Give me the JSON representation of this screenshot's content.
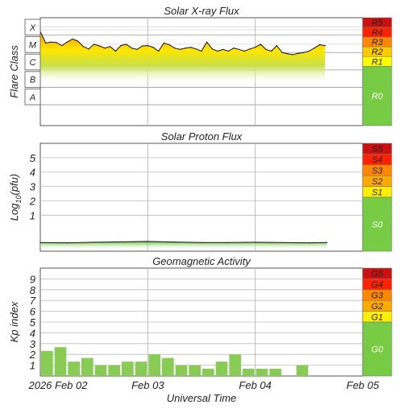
{
  "chart_data": [
    {
      "type": "area",
      "title": "Solar X-ray Flux",
      "ylabel": "Flare Class",
      "y_scale": "log",
      "y_categories": [
        "X",
        "M",
        "C",
        "B",
        "A"
      ],
      "x_ticks": [
        "2026 Feb 02",
        "Feb 03",
        "Feb 04",
        "Feb 05"
      ],
      "grid": true,
      "series": [
        {
          "x": [
            "Feb 02 00:00",
            "Feb 02 01:12",
            "Feb 02 02:24",
            "Feb 02 03:36",
            "Feb 02 04:48",
            "Feb 02 06:00",
            "Feb 02 07:12",
            "Feb 02 08:24",
            "Feb 02 09:36",
            "Feb 02 10:48",
            "Feb 02 12:00",
            "Feb 02 13:12",
            "Feb 02 14:24",
            "Feb 02 15:36",
            "Feb 02 16:48",
            "Feb 02 18:00",
            "Feb 02 19:12",
            "Feb 02 20:24",
            "Feb 02 21:36",
            "Feb 02 22:48",
            "Feb 03 00:00",
            "Feb 03 01:12",
            "Feb 03 02:24",
            "Feb 03 03:36",
            "Feb 03 04:48",
            "Feb 03 06:00",
            "Feb 03 07:12",
            "Feb 03 08:24",
            "Feb 03 09:36",
            "Feb 03 10:48",
            "Feb 03 12:00",
            "Feb 03 13:12",
            "Feb 03 14:24",
            "Feb 03 15:36",
            "Feb 03 16:48",
            "Feb 03 18:00",
            "Feb 03 19:12",
            "Feb 03 20:24",
            "Feb 03 21:36",
            "Feb 03 22:48",
            "Feb 04 00:00",
            "Feb 04 01:12",
            "Feb 04 02:24",
            "Feb 04 03:36",
            "Feb 04 04:48",
            "Feb 04 06:00",
            "Feb 04 07:12",
            "Feb 04 08:24",
            "Feb 04 09:36",
            "Feb 04 10:48",
            "Feb 04 12:00",
            "Feb 04 13:12",
            "Feb 04 14:24",
            "Feb 04 15:36"
          ],
          "values": [
            0.00016,
            3.5e-05,
            4e-05,
            3.8e-05,
            2.5e-05,
            4e-05,
            6e-05,
            4.5e-05,
            2.2e-05,
            1.6e-05,
            3e-05,
            2.4e-05,
            1.8e-05,
            2.2e-05,
            1.2e-05,
            2.5e-05,
            3e-05,
            1.8e-05,
            1.5e-05,
            2.4e-05,
            2.5e-05,
            2e-05,
            1.2e-05,
            3.5e-05,
            2.8e-05,
            1.8e-05,
            1.5e-05,
            1.8e-05,
            2e-05,
            1.6e-05,
            1.2e-05,
            4e-05,
            1.6e-05,
            1.2e-05,
            1.5e-05,
            1.2e-05,
            1.8e-05,
            1.5e-05,
            1.2e-05,
            1.6e-05,
            2e-05,
            3e-05,
            1.5e-05,
            1.2e-05,
            2.5e-05,
            1e-05,
            8.5e-06,
            7.5e-06,
            9e-06,
            1e-05,
            1.2e-05,
            1.8e-05,
            2.8e-05,
            2.5e-05
          ]
        }
      ],
      "scale_labels": [
        "R5",
        "R4",
        "R3",
        "R2",
        "R1",
        "R0"
      ],
      "scale_colors": [
        "#cc1111",
        "#ff2200",
        "#ff8800",
        "#ffcc00",
        "#ffff00",
        "#77cc44"
      ]
    },
    {
      "type": "area",
      "title": "Solar Proton Flux",
      "ylabel": "Log10(pfu)",
      "ylabel_parts": [
        "Log",
        "10",
        "(pfu)"
      ],
      "y_ticks": [
        "5",
        "4",
        "3",
        "2",
        "1"
      ],
      "ylim": [
        -1.5,
        6
      ],
      "x_ticks": [
        "2026 Feb 02",
        "Feb 03",
        "Feb 04",
        "Feb 05"
      ],
      "grid": true,
      "series": [
        {
          "x": [
            "Feb 02 00:00",
            "Feb 02 06:00",
            "Feb 02 12:00",
            "Feb 02 18:00",
            "Feb 03 00:00",
            "Feb 03 06:00",
            "Feb 03 12:00",
            "Feb 03 18:00",
            "Feb 04 00:00",
            "Feb 04 06:00",
            "Feb 04 12:00",
            "Feb 04 16:00"
          ],
          "values": [
            -0.9,
            -0.92,
            -0.88,
            -0.85,
            -0.82,
            -0.86,
            -0.9,
            -0.9,
            -0.88,
            -0.9,
            -0.92,
            -0.9
          ]
        }
      ],
      "scale_labels": [
        "S5",
        "S4",
        "S3",
        "S2",
        "S1",
        "S0"
      ],
      "scale_colors": [
        "#cc1111",
        "#ff2200",
        "#ff8800",
        "#ffaa00",
        "#ffee00",
        "#77cc44"
      ]
    },
    {
      "type": "bar",
      "title": "Geomagnetic Activity",
      "ylabel": "Kp index",
      "y_ticks": [
        "9",
        "8",
        "7",
        "6",
        "5",
        "4",
        "3",
        "2",
        "1"
      ],
      "ylim": [
        0,
        10
      ],
      "x_ticks": [
        "2026 Feb 02",
        "Feb 03",
        "Feb 04",
        "Feb 05"
      ],
      "xlabel": "Universal Time",
      "grid": true,
      "categories": [
        "Feb 02 00-03",
        "Feb 02 03-06",
        "Feb 02 06-09",
        "Feb 02 09-12",
        "Feb 02 12-15",
        "Feb 02 15-18",
        "Feb 02 18-21",
        "Feb 02 21-24",
        "Feb 03 00-03",
        "Feb 03 03-06",
        "Feb 03 06-09",
        "Feb 03 09-12",
        "Feb 03 12-15",
        "Feb 03 15-18",
        "Feb 03 18-21",
        "Feb 03 21-24",
        "Feb 04 00-03",
        "Feb 04 03-06",
        "Feb 04 06-09",
        "Feb 04 09-12"
      ],
      "values": [
        2.33,
        2.67,
        1.33,
        1.67,
        1.0,
        1.0,
        1.33,
        1.33,
        2.0,
        1.67,
        1.0,
        1.0,
        0.67,
        1.33,
        2.0,
        0.67,
        0.67,
        0.67,
        0.0,
        1.0
      ],
      "scale_labels": [
        "G5",
        "G4",
        "G3",
        "G2",
        "G1",
        "G0"
      ],
      "scale_colors": [
        "#cc1111",
        "#ff2200",
        "#ff8800",
        "#ffaa00",
        "#ffee00",
        "#77cc44"
      ]
    }
  ]
}
